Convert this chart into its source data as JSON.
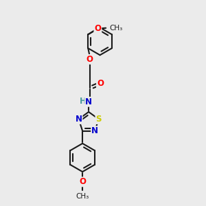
{
  "background_color": "#ebebeb",
  "bond_color": "#1a1a1a",
  "bond_width": 1.5,
  "atom_colors": {
    "O": "#ff0000",
    "N": "#0000cc",
    "S": "#cccc00",
    "H": "#4a9a9a",
    "C": "#1a1a1a"
  },
  "font_size": 8.5
}
